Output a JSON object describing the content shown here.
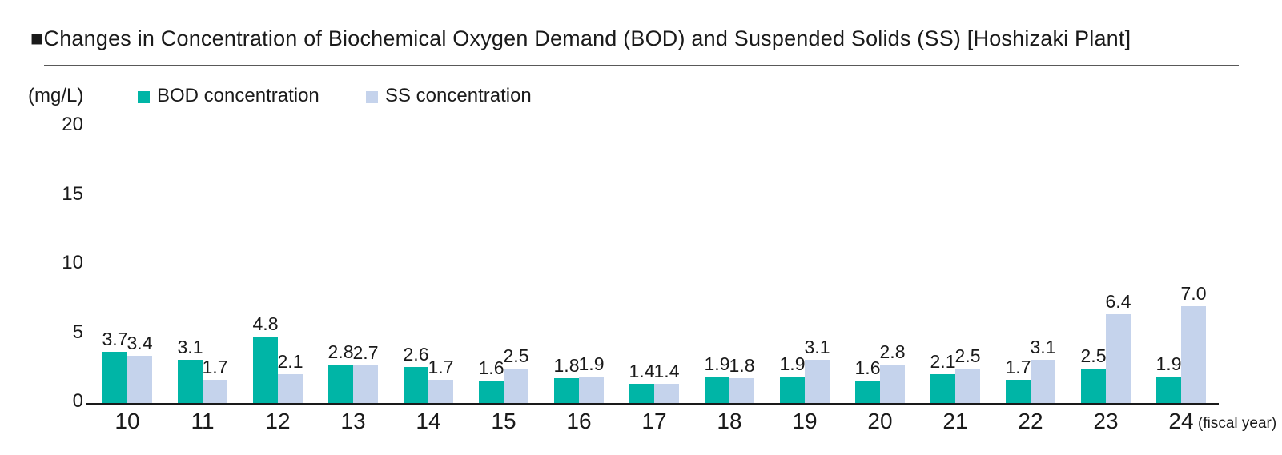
{
  "title": "■Changes in Concentration of Biochemical Oxygen Demand (BOD) and Suspended Solids (SS) [Hoshizaki Plant]",
  "colors": {
    "bod": "#00b5a6",
    "ss": "#c5d3ec",
    "axis": "#1a1a1a",
    "title_rule": "#595959"
  },
  "chart_data": {
    "type": "bar",
    "title": "Changes in Concentration of Biochemical Oxygen Demand (BOD) and Suspended Solids (SS) [Hoshizaki Plant]",
    "ylabel": "(mg/L)",
    "xlabel": "(fiscal year)",
    "ylim": [
      0,
      20
    ],
    "yticks": [
      0,
      5,
      10,
      15,
      20
    ],
    "grid": false,
    "legend_position": "top",
    "categories": [
      "10",
      "11",
      "12",
      "13",
      "14",
      "15",
      "16",
      "17",
      "18",
      "19",
      "20",
      "21",
      "22",
      "23",
      "24"
    ],
    "series": [
      {
        "name": "BOD concentration",
        "color": "#00b5a6",
        "values": [
          3.7,
          3.1,
          4.8,
          2.8,
          2.6,
          1.6,
          1.8,
          1.4,
          1.9,
          1.9,
          1.6,
          2.1,
          1.7,
          2.5,
          1.9
        ]
      },
      {
        "name": "SS concentration",
        "color": "#c5d3ec",
        "values": [
          3.4,
          1.7,
          2.1,
          2.7,
          1.7,
          2.5,
          1.9,
          1.4,
          1.8,
          3.1,
          2.8,
          2.5,
          3.1,
          6.4,
          7.0
        ]
      }
    ]
  }
}
